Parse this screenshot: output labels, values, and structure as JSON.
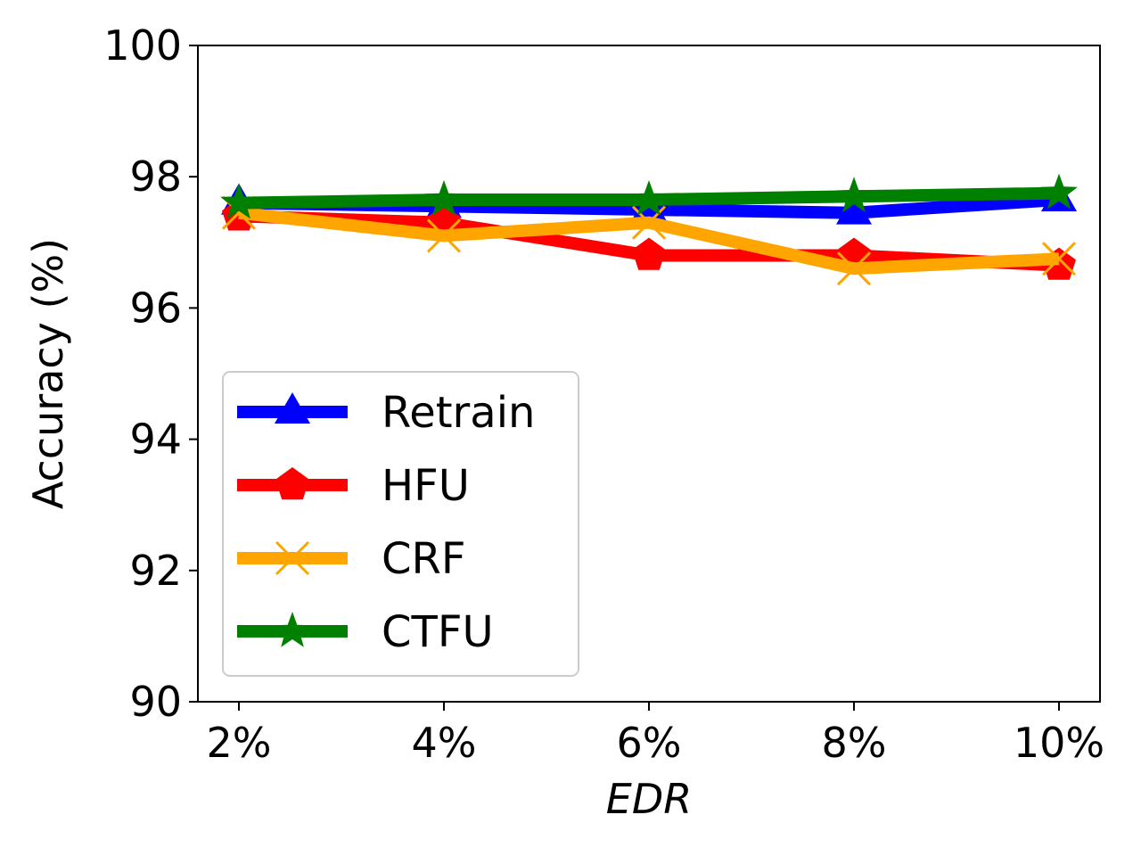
{
  "chart_data": {
    "type": "line",
    "title": "",
    "xlabel": "EDR",
    "ylabel": "Accuracy (%)",
    "categories": [
      "2%",
      "4%",
      "6%",
      "8%",
      "10%"
    ],
    "ylim": [
      90,
      100
    ],
    "yticks": [
      "90",
      "92",
      "94",
      "96",
      "98",
      "100"
    ],
    "grid": false,
    "legend_position": "lower-left",
    "series": [
      {
        "name": "Retrain",
        "color": "#0000ff",
        "marker": "triangle",
        "values": [
          97.6,
          97.55,
          97.5,
          97.45,
          97.65
        ]
      },
      {
        "name": "HFU",
        "color": "#ff0000",
        "marker": "pentagon",
        "values": [
          97.4,
          97.3,
          96.8,
          96.8,
          96.65
        ]
      },
      {
        "name": "CRF",
        "color": "#ffa500",
        "marker": "x",
        "values": [
          97.45,
          97.1,
          97.3,
          96.6,
          96.75
        ]
      },
      {
        "name": "CTFU",
        "color": "#008000",
        "marker": "star",
        "values": [
          97.6,
          97.65,
          97.65,
          97.7,
          97.75
        ]
      }
    ]
  }
}
